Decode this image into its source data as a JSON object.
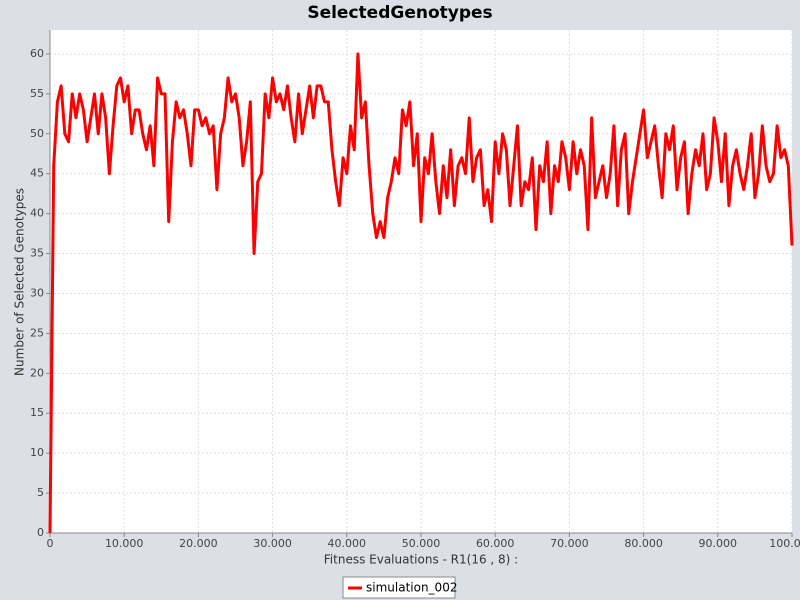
{
  "chart_data": {
    "type": "line",
    "title": "SelectedGenotypes",
    "x_label": "Fitness Evaluations - R1(16 , 8) :",
    "y_label": "Number of Selected Genotypes",
    "x": [
      0,
      500,
      1000,
      1500,
      2000,
      2500,
      3000,
      3500,
      4000,
      4500,
      5000,
      5500,
      6000,
      6500,
      7000,
      7500,
      8000,
      8500,
      9000,
      9500,
      10000,
      10500,
      11000,
      11500,
      12000,
      12500,
      13000,
      13500,
      14000,
      14500,
      15000,
      15500,
      16000,
      16500,
      17000,
      17500,
      18000,
      18500,
      19000,
      19500,
      20000,
      20500,
      21000,
      21500,
      22000,
      22500,
      23000,
      23500,
      24000,
      24500,
      25000,
      25500,
      26000,
      26500,
      27000,
      27500,
      28000,
      28500,
      29000,
      29500,
      30000,
      30500,
      31000,
      31500,
      32000,
      32500,
      33000,
      33500,
      34000,
      34500,
      35000,
      35500,
      36000,
      36500,
      37000,
      37500,
      38000,
      38500,
      39000,
      39500,
      40000,
      40500,
      41000,
      41500,
      42000,
      42500,
      43000,
      43500,
      44000,
      44500,
      45000,
      45500,
      46000,
      46500,
      47000,
      47500,
      48000,
      48500,
      49000,
      49500,
      50000,
      50500,
      51000,
      51500,
      52000,
      52500,
      53000,
      53500,
      54000,
      54500,
      55000,
      55500,
      56000,
      56500,
      57000,
      57500,
      58000,
      58500,
      59000,
      59500,
      60000,
      60500,
      61000,
      61500,
      62000,
      62500,
      63000,
      63500,
      64000,
      64500,
      65000,
      65500,
      66000,
      66500,
      67000,
      67500,
      68000,
      68500,
      69000,
      69500,
      70000,
      70500,
      71000,
      71500,
      72000,
      72500,
      73000,
      73500,
      74000,
      74500,
      75000,
      75500,
      76000,
      76500,
      77000,
      77500,
      78000,
      78500,
      79000,
      79500,
      80000,
      80500,
      81000,
      81500,
      82000,
      82500,
      83000,
      83500,
      84000,
      84500,
      85000,
      85500,
      86000,
      86500,
      87000,
      87500,
      88000,
      88500,
      89000,
      89500,
      90000,
      90500,
      91000,
      91500,
      92000,
      92500,
      93000,
      93500,
      94000,
      94500,
      95000,
      95500,
      96000,
      96500,
      97000,
      97500,
      98000,
      98500,
      99000,
      99500,
      100000
    ],
    "series": [
      {
        "name": "simulation_002",
        "color": "#ff0000",
        "values": [
          0,
          46,
          54,
          56,
          50,
          49,
          55,
          52,
          55,
          53,
          49,
          52,
          55,
          50,
          55,
          52,
          45,
          51,
          56,
          57,
          54,
          56,
          50,
          53,
          53,
          50,
          48,
          51,
          46,
          57,
          55,
          55,
          39,
          49,
          54,
          52,
          53,
          50,
          46,
          53,
          53,
          51,
          52,
          50,
          51,
          43,
          50,
          52,
          57,
          54,
          55,
          52,
          46,
          49,
          54,
          35,
          44,
          45,
          55,
          52,
          57,
          54,
          55,
          53,
          56,
          52,
          49,
          55,
          50,
          53,
          56,
          52,
          56,
          56,
          54,
          54,
          48,
          44,
          41,
          47,
          45,
          51,
          48,
          60,
          52,
          54,
          46,
          40,
          37,
          39,
          37,
          42,
          44,
          47,
          45,
          53,
          51,
          54,
          46,
          50,
          39,
          47,
          45,
          50,
          44,
          40,
          46,
          42,
          48,
          41,
          46,
          47,
          45,
          52,
          44,
          47,
          48,
          41,
          43,
          39,
          49,
          45,
          50,
          48,
          41,
          46,
          51,
          41,
          44,
          43,
          47,
          38,
          46,
          44,
          49,
          40,
          46,
          44,
          49,
          47,
          43,
          49,
          45,
          48,
          46,
          38,
          52,
          42,
          44,
          46,
          42,
          45,
          51,
          41,
          48,
          50,
          40,
          44,
          47,
          50,
          53,
          47,
          49,
          51,
          46,
          42,
          50,
          48,
          51,
          43,
          47,
          49,
          40,
          45,
          48,
          46,
          50,
          43,
          45,
          52,
          49,
          44,
          50,
          41,
          46,
          48,
          45,
          43,
          46,
          50,
          42,
          45,
          51,
          46,
          44,
          45,
          51,
          47,
          48,
          46,
          36
        ]
      }
    ],
    "xlim": [
      0,
      100000
    ],
    "ylim": [
      0,
      63
    ],
    "xticks": [
      0,
      {
        "value": 10000,
        "label": "10.000"
      },
      {
        "value": 20000,
        "label": "20.000"
      },
      {
        "value": 30000,
        "label": "30.000"
      },
      {
        "value": 40000,
        "label": "40.000"
      },
      {
        "value": 50000,
        "label": "50.000"
      },
      {
        "value": 60000,
        "label": "60.000"
      },
      {
        "value": 70000,
        "label": "70.000"
      },
      {
        "value": 80000,
        "label": "80.000"
      },
      {
        "value": 90000,
        "label": "90.000"
      },
      {
        "value": 100000,
        "label": "100.000"
      }
    ],
    "yticks": [
      0,
      5,
      10,
      15,
      20,
      25,
      30,
      35,
      40,
      45,
      50,
      55,
      60
    ],
    "grid": true
  }
}
